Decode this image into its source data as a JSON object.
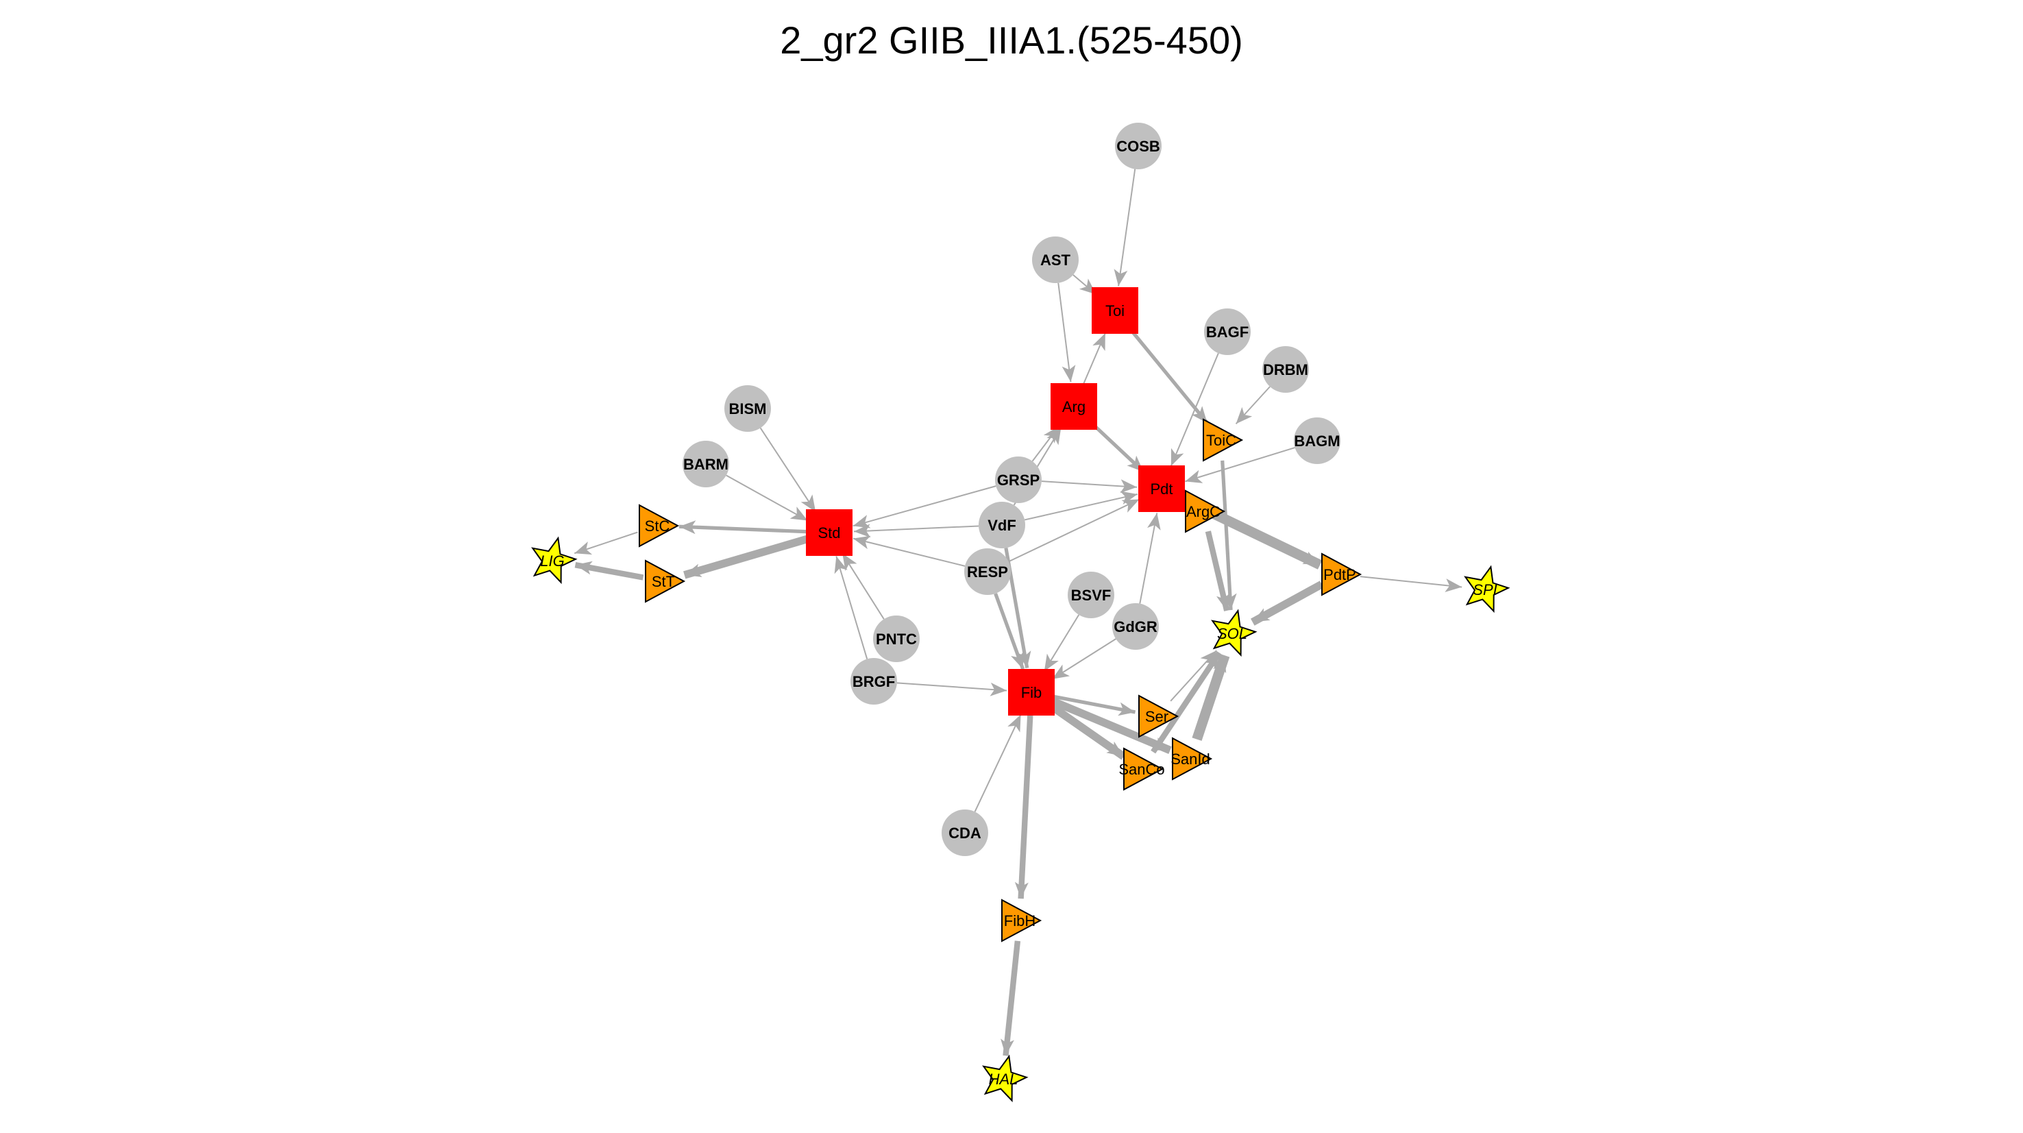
{
  "title": "2_gr2 GIIB_IIIA1.(525-450)",
  "colors": {
    "edge": "#aaaaaa",
    "circle": "#c0c0c0",
    "square": "#ff0000",
    "triangle": "#ff9900",
    "star": "#ffff00",
    "outline": "#000000"
  },
  "nodes": [
    {
      "id": "COSB",
      "label": "COSB",
      "shape": "circle"
    },
    {
      "id": "AST",
      "label": "AST",
      "shape": "circle"
    },
    {
      "id": "Toi",
      "label": "Toi",
      "shape": "square"
    },
    {
      "id": "BAGF",
      "label": "BAGF",
      "shape": "circle"
    },
    {
      "id": "DRBM",
      "label": "DRBM",
      "shape": "circle"
    },
    {
      "id": "Arg",
      "label": "Arg",
      "shape": "square"
    },
    {
      "id": "ToiC",
      "label": "ToiC",
      "shape": "triangle"
    },
    {
      "id": "BAGM",
      "label": "BAGM",
      "shape": "circle"
    },
    {
      "id": "BISM",
      "label": "BISM",
      "shape": "circle"
    },
    {
      "id": "BARM",
      "label": "BARM",
      "shape": "circle"
    },
    {
      "id": "GRSP",
      "label": "GRSP",
      "shape": "circle"
    },
    {
      "id": "Pdt",
      "label": "Pdt",
      "shape": "square"
    },
    {
      "id": "ArgC",
      "label": "ArgC",
      "shape": "triangle"
    },
    {
      "id": "StC",
      "label": "StC",
      "shape": "triangle"
    },
    {
      "id": "Std",
      "label": "Std",
      "shape": "square"
    },
    {
      "id": "VdF",
      "label": "VdF",
      "shape": "circle"
    },
    {
      "id": "LIG",
      "label": "LIG",
      "shape": "star"
    },
    {
      "id": "StT",
      "label": "StT",
      "shape": "triangle"
    },
    {
      "id": "RESP",
      "label": "RESP",
      "shape": "circle"
    },
    {
      "id": "PdtP",
      "label": "PdtP",
      "shape": "triangle"
    },
    {
      "id": "SPI",
      "label": "SPI",
      "shape": "star"
    },
    {
      "id": "BSVF",
      "label": "BSVF",
      "shape": "circle"
    },
    {
      "id": "GdGR",
      "label": "GdGR",
      "shape": "circle"
    },
    {
      "id": "SOL",
      "label": "SOL",
      "shape": "star"
    },
    {
      "id": "PNTC",
      "label": "PNTC",
      "shape": "circle"
    },
    {
      "id": "BRGF",
      "label": "BRGF",
      "shape": "circle"
    },
    {
      "id": "Fib",
      "label": "Fib",
      "shape": "square"
    },
    {
      "id": "Ser",
      "label": "Ser",
      "shape": "triangle"
    },
    {
      "id": "SanId",
      "label": "SanId",
      "shape": "triangle"
    },
    {
      "id": "SanCo",
      "label": "SanCo",
      "shape": "triangle"
    },
    {
      "id": "CDA",
      "label": "CDA",
      "shape": "circle"
    },
    {
      "id": "FibH",
      "label": "FibH",
      "shape": "triangle"
    },
    {
      "id": "HAL",
      "label": "HAL",
      "shape": "star"
    }
  ],
  "edges": [
    {
      "from": "COSB",
      "to": "Toi",
      "weight": 1
    },
    {
      "from": "AST",
      "to": "Toi",
      "weight": 1
    },
    {
      "from": "AST",
      "to": "Arg",
      "weight": 1
    },
    {
      "from": "Arg",
      "to": "Toi",
      "weight": 1
    },
    {
      "from": "Toi",
      "to": "ToiC",
      "weight": 2
    },
    {
      "from": "Arg",
      "to": "Pdt",
      "weight": 2
    },
    {
      "from": "BAGF",
      "to": "Pdt",
      "weight": 1
    },
    {
      "from": "DRBM",
      "to": "ToiC",
      "weight": 1
    },
    {
      "from": "BAGM",
      "to": "Pdt",
      "weight": 1
    },
    {
      "from": "GRSP",
      "to": "Arg",
      "weight": 1
    },
    {
      "from": "GRSP",
      "to": "Pdt",
      "weight": 1
    },
    {
      "from": "GRSP",
      "to": "Std",
      "weight": 1
    },
    {
      "from": "VdF",
      "to": "Arg",
      "weight": 1
    },
    {
      "from": "VdF",
      "to": "Pdt",
      "weight": 1
    },
    {
      "from": "VdF",
      "to": "Std",
      "weight": 1
    },
    {
      "from": "RESP",
      "to": "Pdt",
      "weight": 1
    },
    {
      "from": "RESP",
      "to": "Std",
      "weight": 1
    },
    {
      "from": "RESP",
      "to": "Fib",
      "weight": 2
    },
    {
      "from": "BISM",
      "to": "Std",
      "weight": 1
    },
    {
      "from": "BARM",
      "to": "Std",
      "weight": 1
    },
    {
      "from": "PNTC",
      "to": "Std",
      "weight": 1
    },
    {
      "from": "BRGF",
      "to": "Std",
      "weight": 1
    },
    {
      "from": "BRGF",
      "to": "Fib",
      "weight": 1
    },
    {
      "from": "Std",
      "to": "StC",
      "weight": 2
    },
    {
      "from": "Std",
      "to": "StT",
      "weight": 4
    },
    {
      "from": "StC",
      "to": "LIG",
      "weight": 1
    },
    {
      "from": "StT",
      "to": "LIG",
      "weight": 3
    },
    {
      "from": "Pdt",
      "to": "PdtP",
      "weight": 5
    },
    {
      "from": "PdtP",
      "to": "SPI",
      "weight": 1
    },
    {
      "from": "PdtP",
      "to": "SOL",
      "weight": 4
    },
    {
      "from": "ToiC",
      "to": "SOL",
      "weight": 2
    },
    {
      "from": "ArgC",
      "to": "SOL",
      "weight": 3
    },
    {
      "from": "Pdt",
      "to": "ArgC",
      "weight": 1
    },
    {
      "from": "BSVF",
      "to": "Fib",
      "weight": 1
    },
    {
      "from": "GdGR",
      "to": "Fib",
      "weight": 1
    },
    {
      "from": "GdGR",
      "to": "Pdt",
      "weight": 1
    },
    {
      "from": "VdF",
      "to": "Fib",
      "weight": 2
    },
    {
      "from": "CDA",
      "to": "Fib",
      "weight": 1
    },
    {
      "from": "Fib",
      "to": "Ser",
      "weight": 2
    },
    {
      "from": "Fib",
      "to": "SanId",
      "weight": 4
    },
    {
      "from": "Fib",
      "to": "SanCo",
      "weight": 4
    },
    {
      "from": "Fib",
      "to": "FibH",
      "weight": 3
    },
    {
      "from": "Ser",
      "to": "SOL",
      "weight": 1
    },
    {
      "from": "SanId",
      "to": "SOL",
      "weight": 5
    },
    {
      "from": "SanCo",
      "to": "SOL",
      "weight": 3
    },
    {
      "from": "FibH",
      "to": "HAL",
      "weight": 3
    }
  ]
}
